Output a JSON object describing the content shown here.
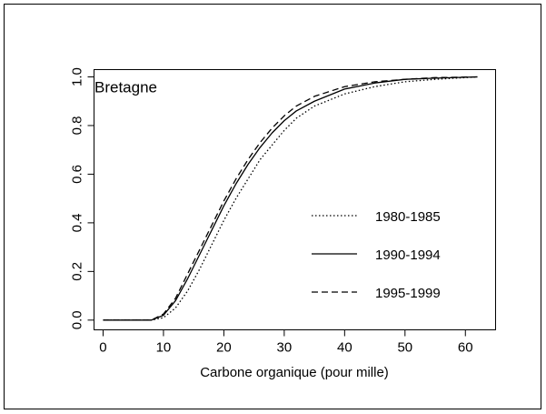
{
  "chart_data": {
    "type": "line",
    "annotation": "Bretagne",
    "x_label": "Carbone organique (pour mille)",
    "x": [
      0,
      5,
      8,
      10,
      12,
      14,
      16,
      18,
      20,
      22,
      24,
      26,
      28,
      30,
      32,
      35,
      40,
      45,
      50,
      55,
      62
    ],
    "series": [
      {
        "name": "1980-1985",
        "color": "#000000",
        "linestyle": "dotted",
        "values": [
          0,
          0,
          0,
          0.01,
          0.05,
          0.12,
          0.21,
          0.31,
          0.41,
          0.5,
          0.58,
          0.66,
          0.72,
          0.78,
          0.83,
          0.88,
          0.93,
          0.96,
          0.98,
          0.99,
          1.0
        ]
      },
      {
        "name": "1990-1994",
        "color": "#000000",
        "linestyle": "solid",
        "values": [
          0,
          0,
          0,
          0.02,
          0.08,
          0.17,
          0.27,
          0.37,
          0.47,
          0.56,
          0.64,
          0.71,
          0.77,
          0.82,
          0.86,
          0.9,
          0.95,
          0.975,
          0.99,
          0.995,
          1.0
        ]
      },
      {
        "name": "1995-1999",
        "color": "#000000",
        "linestyle": "dashed",
        "values": [
          0,
          0,
          0,
          0.025,
          0.09,
          0.19,
          0.29,
          0.39,
          0.49,
          0.58,
          0.66,
          0.73,
          0.79,
          0.84,
          0.88,
          0.92,
          0.96,
          0.98,
          0.99,
          0.997,
          1.0
        ]
      }
    ],
    "xlim": [
      -1.5,
      65
    ],
    "ylim": [
      -0.04,
      1.03
    ],
    "xticks": [
      0,
      10,
      20,
      30,
      40,
      50,
      60
    ],
    "yticks": [
      {
        "value": 0,
        "label": "0.0"
      },
      {
        "value": 0.2,
        "label": "0.2"
      },
      {
        "value": 0.4,
        "label": "0.4"
      },
      {
        "value": 0.6,
        "label": "0.6"
      },
      {
        "value": 0.8,
        "label": "0.8"
      },
      {
        "value": 1,
        "label": "1.0"
      }
    ],
    "legend": "lower right"
  }
}
